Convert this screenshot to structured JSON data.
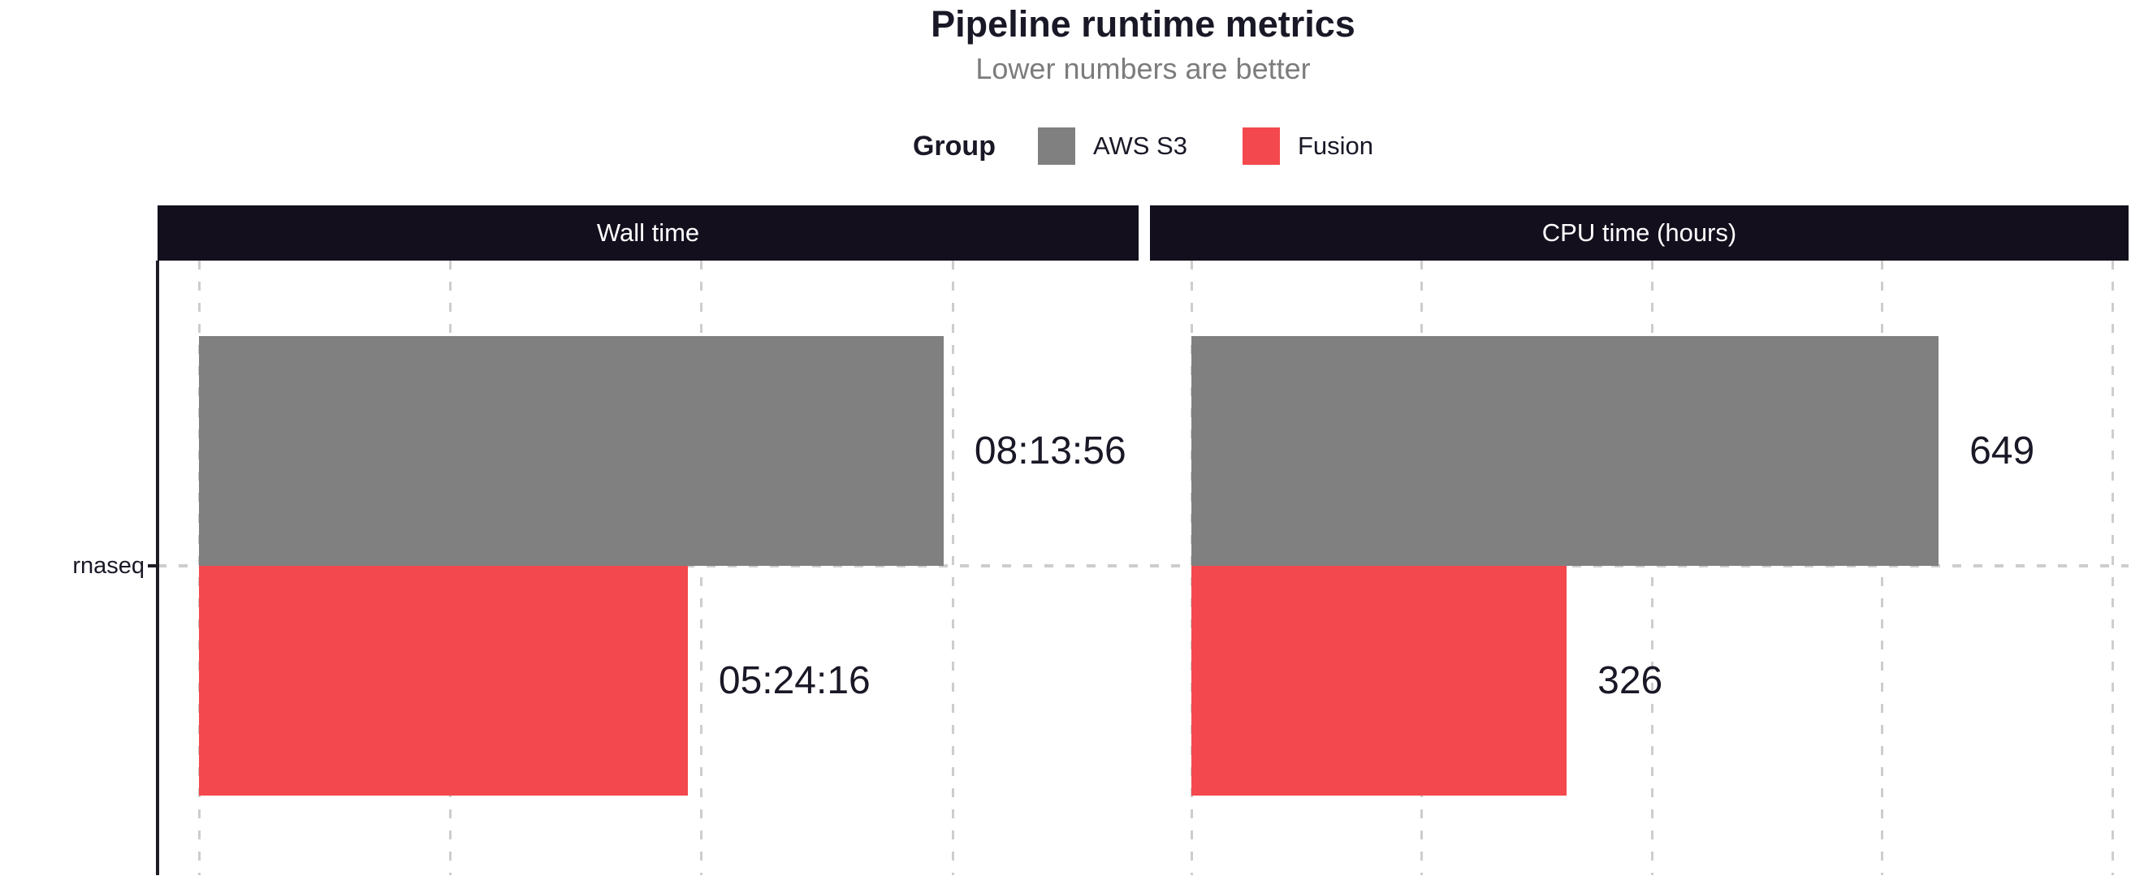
{
  "chart_data": {
    "type": "bar",
    "orientation": "horizontal",
    "title": "Pipeline runtime metrics",
    "subtitle": "Lower numbers are better",
    "legend_title": "Group",
    "legend_position": "top",
    "grid": "dashed",
    "categories": [
      "rnaseq"
    ],
    "groups": [
      {
        "name": "AWS S3",
        "color": "#808080"
      },
      {
        "name": "Fusion",
        "color": "#F3494E"
      }
    ],
    "panels": [
      {
        "title": "Wall time",
        "xlim": [
          0,
          37400
        ],
        "grid_step": 10000,
        "bars": [
          {
            "group": "AWS S3",
            "category": "rnaseq",
            "value": 29636,
            "label": "08:13:56"
          },
          {
            "group": "Fusion",
            "category": "rnaseq",
            "value": 19456,
            "label": "05:24:16"
          }
        ]
      },
      {
        "title": "CPU time (hours)",
        "xlim": [
          0,
          814
        ],
        "grid_step": 200,
        "bars": [
          {
            "group": "AWS S3",
            "category": "rnaseq",
            "value": 649,
            "label": "649"
          },
          {
            "group": "Fusion",
            "category": "rnaseq",
            "value": 326,
            "label": "326"
          }
        ]
      }
    ],
    "colors": {
      "strip_bg": "#130F1D",
      "strip_text": "#FFFFFF",
      "text": "#191826",
      "subtitle": "#7C7C7C",
      "grid": "#CDCDCD",
      "axis": "#1D1C24"
    }
  }
}
